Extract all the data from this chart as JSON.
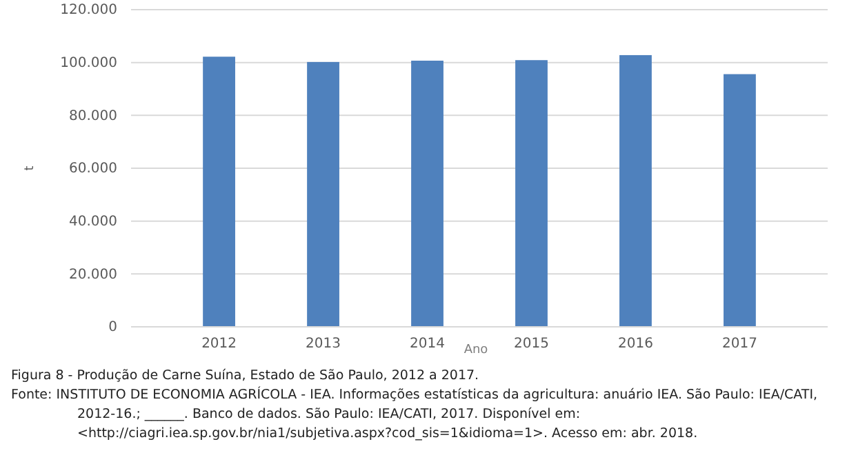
{
  "chart_data": {
    "type": "bar",
    "categories": [
      "2012",
      "2013",
      "2014",
      "2015",
      "2016",
      "2017"
    ],
    "values": [
      102200,
      100200,
      100700,
      100900,
      102800,
      95600
    ],
    "color": "#4f81bd",
    "ylim": [
      0,
      120000
    ],
    "yticks": [
      {
        "value": 0,
        "label": "0"
      },
      {
        "value": 20000,
        "label": "20.000"
      },
      {
        "value": 40000,
        "label": "40.000"
      },
      {
        "value": 60000,
        "label": "60.000"
      },
      {
        "value": 80000,
        "label": "80.000"
      },
      {
        "value": 100000,
        "label": "100.000"
      },
      {
        "value": 120000,
        "label": "120.000"
      }
    ],
    "grid": "y",
    "xlabel": "Ano",
    "ylabel": "t",
    "annotations": [
      "Figura 8 - Produção de Carne Suína, Estado de São Paulo, 2012 a 2017.",
      "Fonte: INSTITUTO DE ECONOMIA AGRÍCOLA - IEA. Informações estatísticas da agricultura: anuário IEA. São Paulo: IEA/CATI, 2012-16.; ______. Banco de dados. São Paulo: IEA/CATI, 2017. Disponível em: <http://ciagri.iea.sp.gov.br/nia1/subjetiva.aspx?cod_sis=1&idioma=1>. Acesso em: abr. 2018."
    ]
  }
}
